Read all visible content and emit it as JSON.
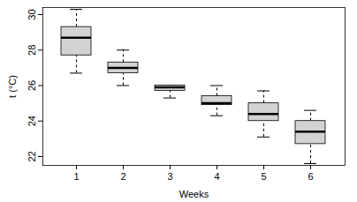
{
  "chart_data": {
    "type": "box",
    "x_label": "Weeks",
    "y_label": "t (°C)",
    "categories": [
      "1",
      "2",
      "3",
      "4",
      "5",
      "6"
    ],
    "min": [
      26.7,
      26.0,
      25.3,
      24.3,
      23.1,
      21.6
    ],
    "q1": [
      27.7,
      26.7,
      25.7,
      24.9,
      24.0,
      22.7
    ],
    "median": [
      28.7,
      27.0,
      25.9,
      25.0,
      24.4,
      23.4
    ],
    "q3": [
      29.3,
      27.3,
      26.0,
      25.4,
      25.0,
      24.0
    ],
    "max": [
      30.3,
      28.0,
      26.0,
      26.0,
      25.7,
      24.6
    ],
    "color": "#d3d3d3",
    "ylim": [
      21.5,
      30.4
    ],
    "yticks": [
      22,
      24,
      26,
      28,
      30
    ],
    "grid": false
  }
}
